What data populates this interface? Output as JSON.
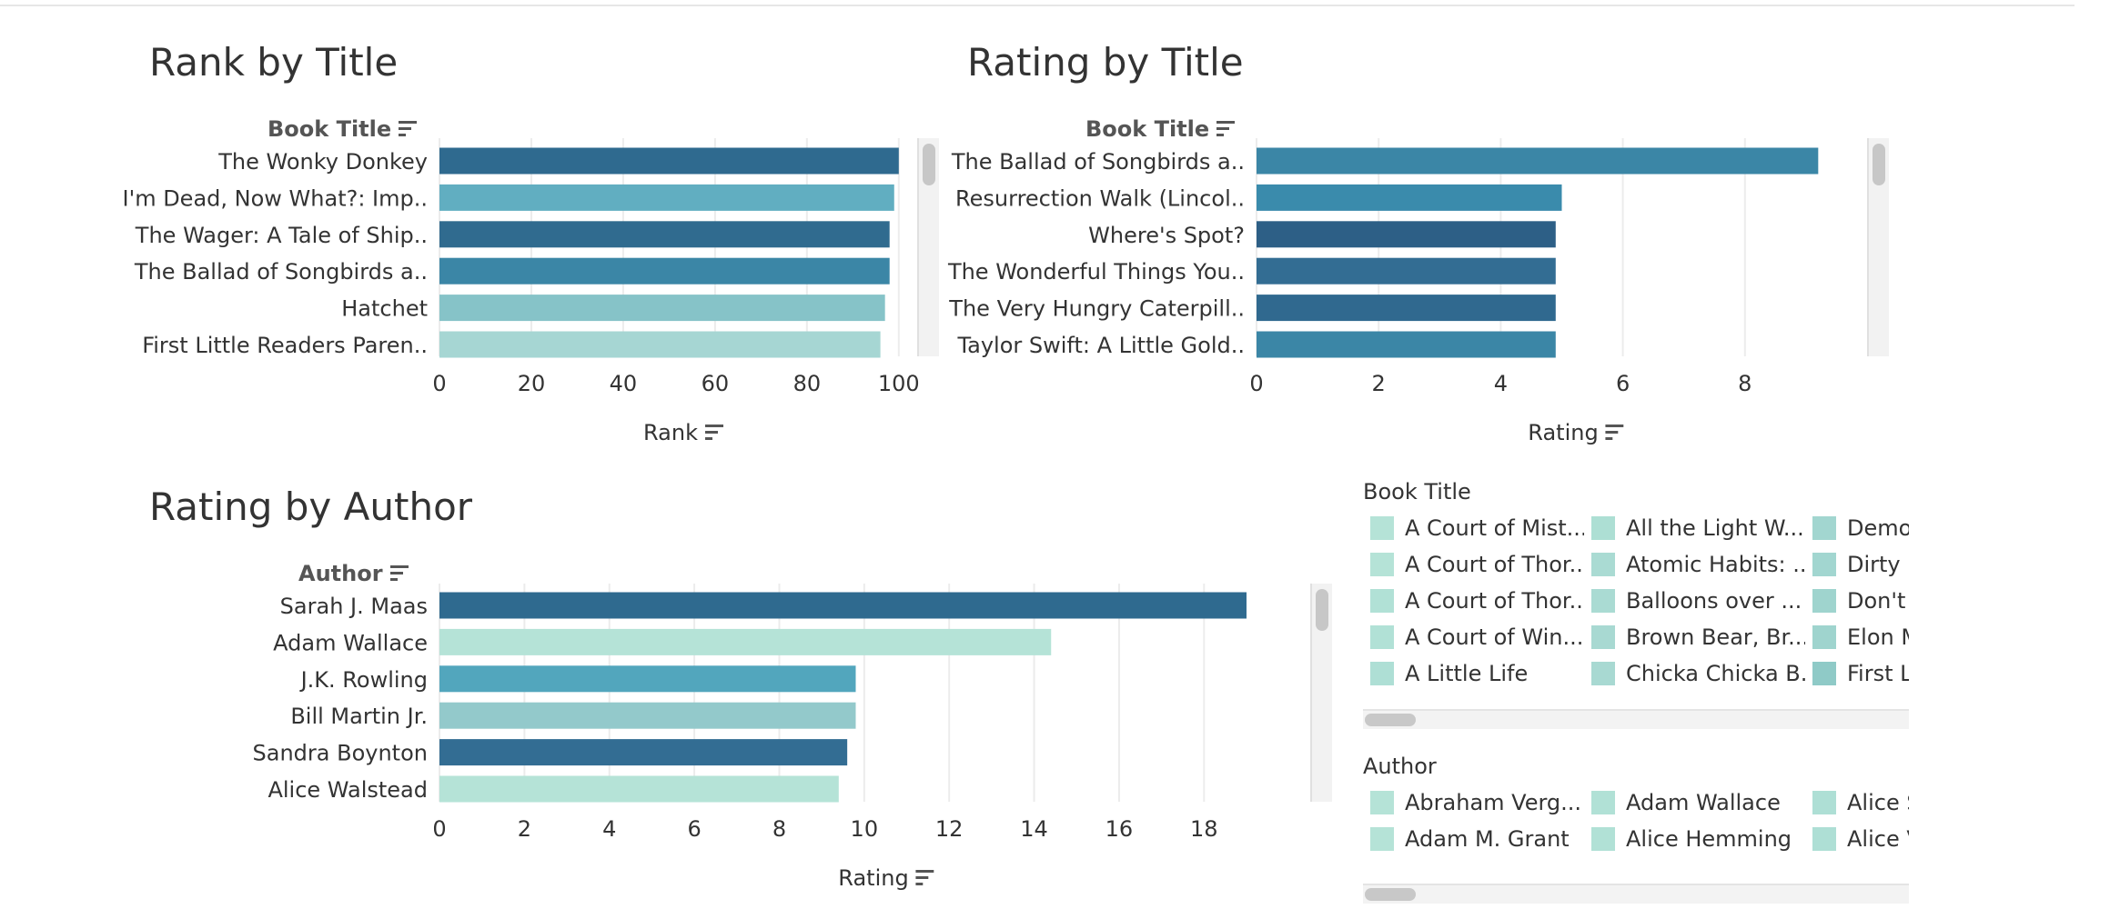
{
  "legends": {
    "book_title": {
      "title": "Book Title",
      "items": [
        {
          "label": "A Court of Mist...",
          "color": "#b5e3d7"
        },
        {
          "label": "A Court of Thor...",
          "color": "#b5e3d7"
        },
        {
          "label": "A Court of Thor...",
          "color": "#b1e1d6"
        },
        {
          "label": "A Court of Win...",
          "color": "#b1e1d6"
        },
        {
          "label": "A Little Life",
          "color": "#aedfd5"
        },
        {
          "label": "All the Light W...",
          "color": "#addfd4"
        },
        {
          "label": "Atomic Habits: ...",
          "color": "#aadbd3"
        },
        {
          "label": "Balloons over ...",
          "color": "#aadbd3"
        },
        {
          "label": "Brown Bear, Br...",
          "color": "#a8d9d2"
        },
        {
          "label": "Chicka Chicka B...",
          "color": "#a8d9d2"
        },
        {
          "label": "Demo",
          "color": "#a2d6d0"
        },
        {
          "label": "Dirty",
          "color": "#a2d6d0"
        },
        {
          "label": "Don't",
          "color": "#9fd4ce"
        },
        {
          "label": "Elon M",
          "color": "#9fd4ce"
        },
        {
          "label": "First L",
          "color": "#8fcac7"
        }
      ]
    },
    "author": {
      "title": "Author",
      "items": [
        {
          "label": "Abraham Verg...",
          "color": "#b5e3d7"
        },
        {
          "label": "Adam M. Grant",
          "color": "#b5e3d7"
        },
        {
          "label": "Adam Wallace",
          "color": "#b1e1d6"
        },
        {
          "label": "Alice Hemming",
          "color": "#b1e1d6"
        },
        {
          "label": "Alice S",
          "color": "#aedfd5"
        },
        {
          "label": "Alice V",
          "color": "#aedfd5"
        }
      ]
    }
  },
  "chart_data": [
    {
      "type": "bar",
      "orientation": "horizontal",
      "title": "Rank by Title",
      "category_label": "Book Title",
      "xlabel": "Rank",
      "categories": [
        "The Wonky Donkey",
        "I'm Dead, Now What?: Imp..",
        "The Wager: A Tale of Ship..",
        "The Ballad of Songbirds a..",
        "Hatchet",
        "First Little Readers Paren.."
      ],
      "values": [
        100,
        99,
        98,
        98,
        97,
        96
      ],
      "colors": [
        "#2f6a8f",
        "#61aec1",
        "#306b8f",
        "#3b86a6",
        "#86c3c8",
        "#a6d6d3"
      ],
      "xlim": [
        0,
        104
      ],
      "xticks": [
        0,
        20,
        40,
        60,
        80,
        100
      ],
      "grid": true
    },
    {
      "type": "bar",
      "orientation": "horizontal",
      "title": "Rating by Title",
      "category_label": "Book Title",
      "xlabel": "Rating",
      "categories": [
        "The Ballad of Songbirds a..",
        "Resurrection Walk (Lincol..",
        "Where's Spot?",
        "The Wonderful Things You..",
        "The Very Hungry Caterpill..",
        "Taylor Swift: A Little Gold.."
      ],
      "values": [
        9.2,
        5.0,
        4.9,
        4.9,
        4.9,
        4.9
      ],
      "colors": [
        "#3b86a6",
        "#3a8bac",
        "#2d5f86",
        "#336d93",
        "#30698f",
        "#3b86a6"
      ],
      "xlim": [
        0,
        10
      ],
      "xticks": [
        0,
        2,
        4,
        6,
        8
      ],
      "grid": true
    },
    {
      "type": "bar",
      "orientation": "horizontal",
      "title": "Rating by Author",
      "category_label": "Author",
      "xlabel": "Rating",
      "categories": [
        "Sarah J. Maas",
        "Adam Wallace",
        "J.K. Rowling",
        "Bill Martin Jr.",
        "Sandra Boynton",
        "Alice Walstead"
      ],
      "values": [
        19.0,
        14.4,
        9.8,
        9.8,
        9.6,
        9.4
      ],
      "colors": [
        "#2f6a8f",
        "#b5e3d7",
        "#52a6bd",
        "#93c9cb",
        "#336d93",
        "#b5e3d7"
      ],
      "xlim": [
        0,
        20.5
      ],
      "xticks": [
        0,
        2,
        4,
        6,
        8,
        10,
        12,
        14,
        16,
        18
      ],
      "grid": true
    }
  ]
}
